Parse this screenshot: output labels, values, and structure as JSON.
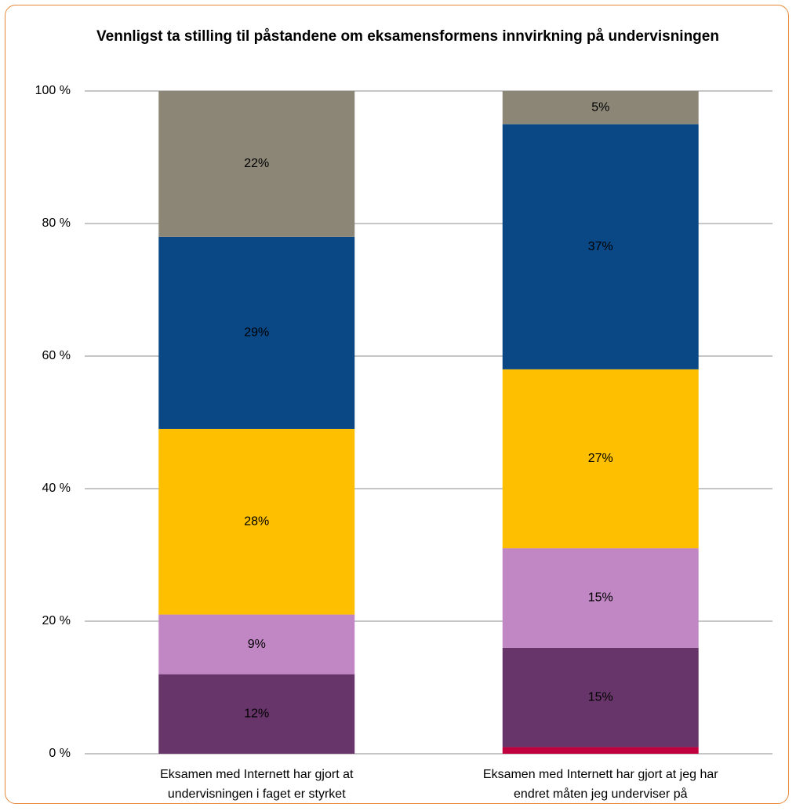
{
  "chart_data": {
    "type": "stacked-bar",
    "title": "Vennligst ta stilling til påstandene om eksamensformens innvirkning på undervisningen",
    "categories": [
      "Eksamen med Internett har gjort at undervisningen i faget er styrket",
      "Eksamen med Internett har gjort at jeg har endret måten jeg underviser på"
    ],
    "series": [
      {
        "color": "#c0003f",
        "values": [
          0,
          1
        ]
      },
      {
        "color": "#67356a",
        "values": [
          12,
          15
        ],
        "value_labels": [
          "12%",
          "15%"
        ]
      },
      {
        "color": "#c087c4",
        "values": [
          9,
          15
        ],
        "value_labels": [
          "9%",
          "15%"
        ]
      },
      {
        "color": "#fdbf00",
        "values": [
          28,
          27
        ],
        "value_labels": [
          "28%",
          "27%"
        ]
      },
      {
        "color": "#0a4785",
        "values": [
          29,
          37
        ],
        "value_labels": [
          "29%",
          "37%"
        ]
      },
      {
        "color": "#8c8677",
        "values": [
          22,
          5
        ],
        "value_labels": [
          "22%",
          "5%"
        ]
      }
    ],
    "ylim": [
      0,
      100
    ],
    "yticks": [
      {
        "value": 0,
        "label": "0 %"
      },
      {
        "value": 20,
        "label": "20 %"
      },
      {
        "value": 40,
        "label": "40 %"
      },
      {
        "value": 60,
        "label": "60 %"
      },
      {
        "value": 80,
        "label": "80 %"
      },
      {
        "value": 100,
        "label": "100 %"
      }
    ],
    "grid": true
  }
}
